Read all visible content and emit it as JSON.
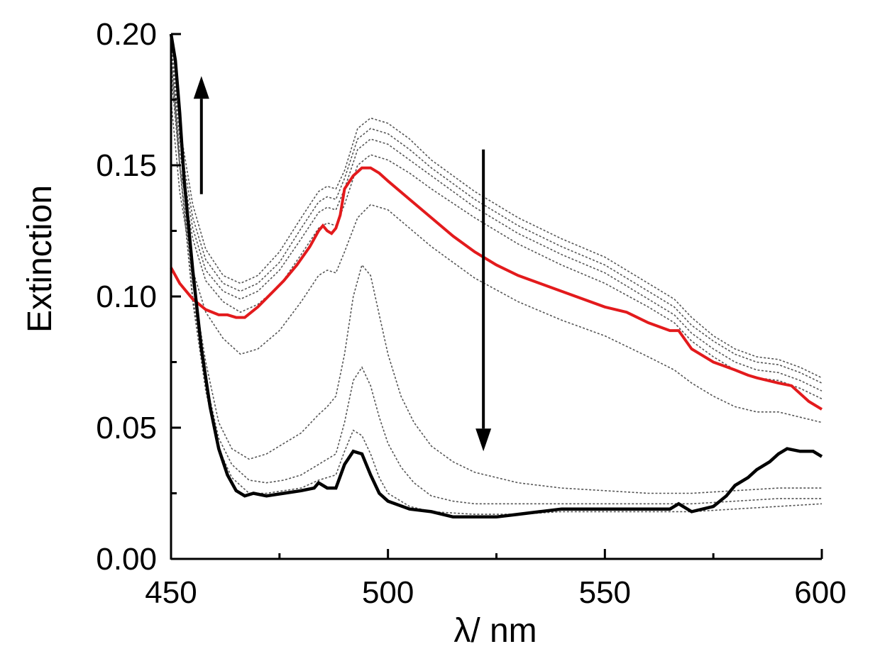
{
  "chart_data": {
    "type": "line",
    "title": "",
    "xlabel": "λ/ nm",
    "ylabel": "Extinction",
    "xlim": [
      450,
      600
    ],
    "ylim": [
      0.0,
      0.2
    ],
    "x_ticks": [
      "450",
      "500",
      "550",
      "600"
    ],
    "y_ticks": [
      "0.00",
      "0.05",
      "0.10",
      "0.15",
      "0.20"
    ],
    "x_tick_values": [
      450,
      500,
      550,
      600
    ],
    "y_tick_values": [
      0.0,
      0.05,
      0.1,
      0.15,
      0.2
    ],
    "grid": false,
    "legend": "none",
    "series": [
      {
        "name": "intermediate-1",
        "style": "dotted",
        "color": "#555555",
        "x": [
          450,
          452,
          455,
          458,
          462,
          466,
          470,
          475,
          480,
          484,
          486,
          488,
          490,
          493,
          496,
          500,
          505,
          510,
          520,
          530,
          540,
          550,
          560,
          566,
          570,
          575,
          580,
          585,
          590,
          595,
          600
        ],
        "y": [
          0.198,
          0.165,
          0.135,
          0.118,
          0.108,
          0.105,
          0.108,
          0.117,
          0.13,
          0.14,
          0.142,
          0.141,
          0.148,
          0.164,
          0.168,
          0.166,
          0.16,
          0.152,
          0.14,
          0.13,
          0.122,
          0.115,
          0.105,
          0.099,
          0.092,
          0.085,
          0.08,
          0.077,
          0.076,
          0.073,
          0.069
        ]
      },
      {
        "name": "intermediate-2",
        "style": "dotted",
        "color": "#555555",
        "x": [
          450,
          452,
          455,
          458,
          462,
          466,
          470,
          475,
          480,
          484,
          486,
          488,
          490,
          493,
          496,
          500,
          505,
          510,
          520,
          530,
          540,
          550,
          560,
          566,
          570,
          575,
          580,
          585,
          590,
          595,
          600
        ],
        "y": [
          0.195,
          0.16,
          0.13,
          0.114,
          0.105,
          0.102,
          0.105,
          0.113,
          0.126,
          0.136,
          0.138,
          0.137,
          0.145,
          0.16,
          0.164,
          0.162,
          0.156,
          0.149,
          0.137,
          0.127,
          0.119,
          0.112,
          0.102,
          0.096,
          0.089,
          0.083,
          0.078,
          0.075,
          0.074,
          0.071,
          0.067
        ]
      },
      {
        "name": "intermediate-3",
        "style": "dotted",
        "color": "#555555",
        "x": [
          450,
          452,
          455,
          458,
          462,
          466,
          470,
          475,
          480,
          484,
          486,
          488,
          490,
          493,
          496,
          500,
          505,
          510,
          520,
          530,
          540,
          550,
          560,
          566,
          570,
          575,
          580,
          585,
          590,
          595,
          600
        ],
        "y": [
          0.19,
          0.155,
          0.126,
          0.11,
          0.102,
          0.099,
          0.102,
          0.11,
          0.122,
          0.132,
          0.134,
          0.133,
          0.141,
          0.156,
          0.16,
          0.158,
          0.152,
          0.146,
          0.134,
          0.124,
          0.116,
          0.109,
          0.099,
          0.093,
          0.086,
          0.08,
          0.075,
          0.072,
          0.071,
          0.068,
          0.064
        ]
      },
      {
        "name": "intermediate-4",
        "style": "dotted",
        "color": "#555555",
        "x": [
          450,
          452,
          455,
          458,
          462,
          466,
          470,
          475,
          480,
          484,
          486,
          488,
          490,
          493,
          496,
          500,
          505,
          510,
          520,
          530,
          540,
          550,
          560,
          566,
          570,
          575,
          580,
          585,
          590,
          595,
          600
        ],
        "y": [
          0.185,
          0.15,
          0.122,
          0.106,
          0.098,
          0.094,
          0.097,
          0.104,
          0.116,
          0.126,
          0.128,
          0.127,
          0.135,
          0.15,
          0.154,
          0.152,
          0.147,
          0.141,
          0.13,
          0.12,
          0.112,
          0.105,
          0.096,
          0.09,
          0.083,
          0.077,
          0.072,
          0.069,
          0.068,
          0.065,
          0.061
        ]
      },
      {
        "name": "intermediate-5",
        "style": "dotted",
        "color": "#555555",
        "x": [
          450,
          452,
          455,
          458,
          462,
          466,
          470,
          475,
          480,
          484,
          486,
          488,
          490,
          493,
          496,
          500,
          505,
          510,
          520,
          530,
          540,
          550,
          560,
          566,
          570,
          575,
          580,
          585,
          590,
          595,
          600
        ],
        "y": [
          0.175,
          0.14,
          0.11,
          0.094,
          0.084,
          0.078,
          0.08,
          0.087,
          0.098,
          0.108,
          0.11,
          0.109,
          0.117,
          0.13,
          0.135,
          0.133,
          0.126,
          0.119,
          0.107,
          0.098,
          0.091,
          0.085,
          0.077,
          0.072,
          0.067,
          0.062,
          0.058,
          0.056,
          0.056,
          0.054,
          0.052
        ]
      },
      {
        "name": "intermediate-6",
        "style": "dotted",
        "color": "#555555",
        "x": [
          450,
          452,
          455,
          458,
          461,
          464,
          468,
          472,
          476,
          480,
          484,
          486,
          488,
          490,
          492,
          494,
          496,
          498,
          500,
          503,
          506,
          510,
          515,
          520,
          530,
          540,
          550,
          560,
          570,
          580,
          590,
          600
        ],
        "y": [
          0.19,
          0.15,
          0.105,
          0.075,
          0.052,
          0.042,
          0.038,
          0.04,
          0.044,
          0.048,
          0.055,
          0.058,
          0.062,
          0.078,
          0.1,
          0.112,
          0.108,
          0.093,
          0.078,
          0.062,
          0.052,
          0.043,
          0.037,
          0.033,
          0.029,
          0.027,
          0.026,
          0.025,
          0.025,
          0.026,
          0.027,
          0.027
        ]
      },
      {
        "name": "intermediate-7",
        "style": "dotted",
        "color": "#555555",
        "x": [
          450,
          452,
          455,
          458,
          461,
          464,
          468,
          472,
          476,
          480,
          484,
          486,
          488,
          490,
          492,
          494,
          496,
          498,
          500,
          503,
          506,
          510,
          515,
          520,
          530,
          540,
          550,
          560,
          570,
          580,
          590,
          600
        ],
        "y": [
          0.195,
          0.15,
          0.1,
          0.068,
          0.046,
          0.036,
          0.03,
          0.029,
          0.03,
          0.032,
          0.036,
          0.038,
          0.04,
          0.052,
          0.068,
          0.073,
          0.066,
          0.054,
          0.044,
          0.035,
          0.029,
          0.024,
          0.022,
          0.021,
          0.021,
          0.021,
          0.021,
          0.021,
          0.021,
          0.022,
          0.023,
          0.023
        ]
      },
      {
        "name": "intermediate-8",
        "style": "dotted",
        "color": "#555555",
        "x": [
          450,
          452,
          455,
          458,
          461,
          464,
          468,
          472,
          476,
          480,
          484,
          486,
          488,
          490,
          492,
          494,
          496,
          498,
          500,
          505,
          510,
          520,
          530,
          540,
          550,
          560,
          570,
          580,
          590,
          600
        ],
        "y": [
          0.198,
          0.15,
          0.098,
          0.064,
          0.042,
          0.031,
          0.025,
          0.025,
          0.026,
          0.027,
          0.03,
          0.031,
          0.032,
          0.041,
          0.049,
          0.047,
          0.04,
          0.031,
          0.025,
          0.02,
          0.018,
          0.017,
          0.017,
          0.018,
          0.018,
          0.018,
          0.018,
          0.019,
          0.02,
          0.021
        ]
      },
      {
        "name": "initial-red",
        "style": "solid",
        "color": "#e31a1c",
        "x": [
          450,
          452,
          455,
          458,
          461,
          463,
          465,
          467,
          470,
          473,
          476,
          479,
          482,
          484,
          485,
          486,
          487,
          488,
          489,
          490,
          492,
          494,
          496,
          498,
          500,
          505,
          510,
          515,
          520,
          525,
          530,
          540,
          550,
          555,
          560,
          565,
          567,
          570,
          575,
          580,
          583,
          585,
          590,
          593,
          597,
          600
        ],
        "y": [
          0.111,
          0.105,
          0.099,
          0.095,
          0.093,
          0.093,
          0.092,
          0.092,
          0.096,
          0.101,
          0.106,
          0.112,
          0.119,
          0.125,
          0.127,
          0.125,
          0.124,
          0.126,
          0.131,
          0.141,
          0.146,
          0.149,
          0.149,
          0.147,
          0.144,
          0.137,
          0.13,
          0.123,
          0.117,
          0.112,
          0.108,
          0.102,
          0.096,
          0.094,
          0.09,
          0.087,
          0.087,
          0.08,
          0.075,
          0.072,
          0.07,
          0.069,
          0.067,
          0.066,
          0.06,
          0.057
        ]
      },
      {
        "name": "final-black",
        "style": "solid",
        "color": "#000000",
        "x": [
          450,
          451,
          452,
          453,
          455,
          457,
          459,
          461,
          463,
          465,
          467,
          469,
          472,
          476,
          480,
          483,
          484,
          486,
          488,
          490,
          492,
          494,
          496,
          498,
          500,
          505,
          510,
          515,
          520,
          525,
          530,
          535,
          540,
          545,
          550,
          555,
          560,
          565,
          567,
          570,
          575,
          578,
          580,
          583,
          585,
          588,
          590,
          592,
          595,
          598,
          600
        ],
        "y": [
          0.2,
          0.19,
          0.17,
          0.145,
          0.11,
          0.08,
          0.058,
          0.042,
          0.032,
          0.026,
          0.024,
          0.025,
          0.024,
          0.025,
          0.026,
          0.027,
          0.029,
          0.027,
          0.027,
          0.036,
          0.041,
          0.04,
          0.032,
          0.025,
          0.022,
          0.019,
          0.018,
          0.016,
          0.016,
          0.016,
          0.017,
          0.018,
          0.019,
          0.019,
          0.019,
          0.019,
          0.019,
          0.019,
          0.021,
          0.018,
          0.02,
          0.024,
          0.028,
          0.031,
          0.034,
          0.037,
          0.04,
          0.042,
          0.041,
          0.041,
          0.039
        ]
      }
    ],
    "annotations": [
      {
        "name": "up-arrow",
        "direction": "up",
        "x": 457,
        "y_from": 0.139,
        "y_to": 0.184
      },
      {
        "name": "down-arrow",
        "direction": "down",
        "x": 522,
        "y_from": 0.156,
        "y_to": 0.041
      }
    ]
  }
}
